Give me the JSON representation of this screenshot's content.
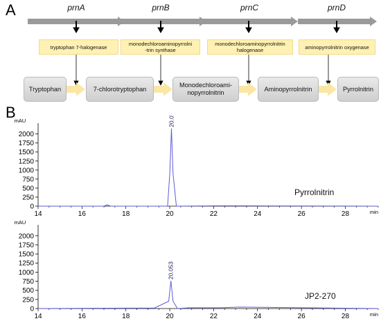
{
  "panels": {
    "a": "A",
    "b": "B"
  },
  "genes": [
    "prnA",
    "prnB",
    "prnC",
    "prnD"
  ],
  "enzymes": [
    "tryptophan 7-halogenase",
    "monodechloroaminopyrrolni\n-trin synthase",
    "monodechloroaminopyrrolnitrin\nhalogenase",
    "aminopyrrolnitrin oxygenase"
  ],
  "compounds": [
    "Tryptophan",
    "7-chlorotryptophan",
    "Monodechloroami-\nnopyrrolnitrin",
    "Aminopyrrolnitrin",
    "Pyrrolnitrin"
  ],
  "colors": {
    "trace": "#5b5bd6",
    "enzyme_fill": "#fff1b3",
    "arrow_fill": "#fbe7a4",
    "gene_arrow": "#9a9a9a"
  },
  "chart_data": [
    {
      "type": "line",
      "series": [
        {
          "name": "Pyrrolnitrin",
          "x": [
            14,
            17.0,
            17.15,
            17.3,
            19.9,
            20.0,
            20.077,
            20.15,
            20.3,
            22.3,
            23.2,
            29.5
          ],
          "y": [
            0,
            0,
            40,
            0,
            0,
            900,
            2150,
            900,
            0,
            10,
            10,
            0
          ]
        }
      ],
      "peak_label": "20.077",
      "trace_label": "Pyrrolnitrin",
      "ylabel": "mAU",
      "xlabel": "min",
      "xlim": [
        14,
        29.5
      ],
      "ylim": [
        0,
        2300
      ],
      "xticks": [
        14,
        16,
        18,
        20,
        22,
        24,
        26,
        28
      ],
      "yticks": [
        0,
        250,
        500,
        750,
        1000,
        1250,
        1500,
        1750,
        2000
      ]
    },
    {
      "type": "line",
      "series": [
        {
          "name": "JP2-270",
          "x": [
            14,
            17.2,
            19.3,
            19.95,
            20.053,
            20.15,
            20.35,
            20.9,
            22.3,
            23.2,
            29.5
          ],
          "y": [
            0,
            10,
            15,
            200,
            760,
            200,
            0,
            20,
            20,
            40,
            0
          ]
        }
      ],
      "peak_label": "20.053",
      "trace_label": "JP2-270",
      "ylabel": "mAU",
      "xlabel": "min",
      "xlim": [
        14,
        29.5
      ],
      "ylim": [
        0,
        2300
      ],
      "xticks": [
        14,
        16,
        18,
        20,
        22,
        24,
        26,
        28
      ],
      "yticks": [
        0,
        250,
        500,
        750,
        1000,
        1250,
        1500,
        1750,
        2000
      ]
    }
  ]
}
